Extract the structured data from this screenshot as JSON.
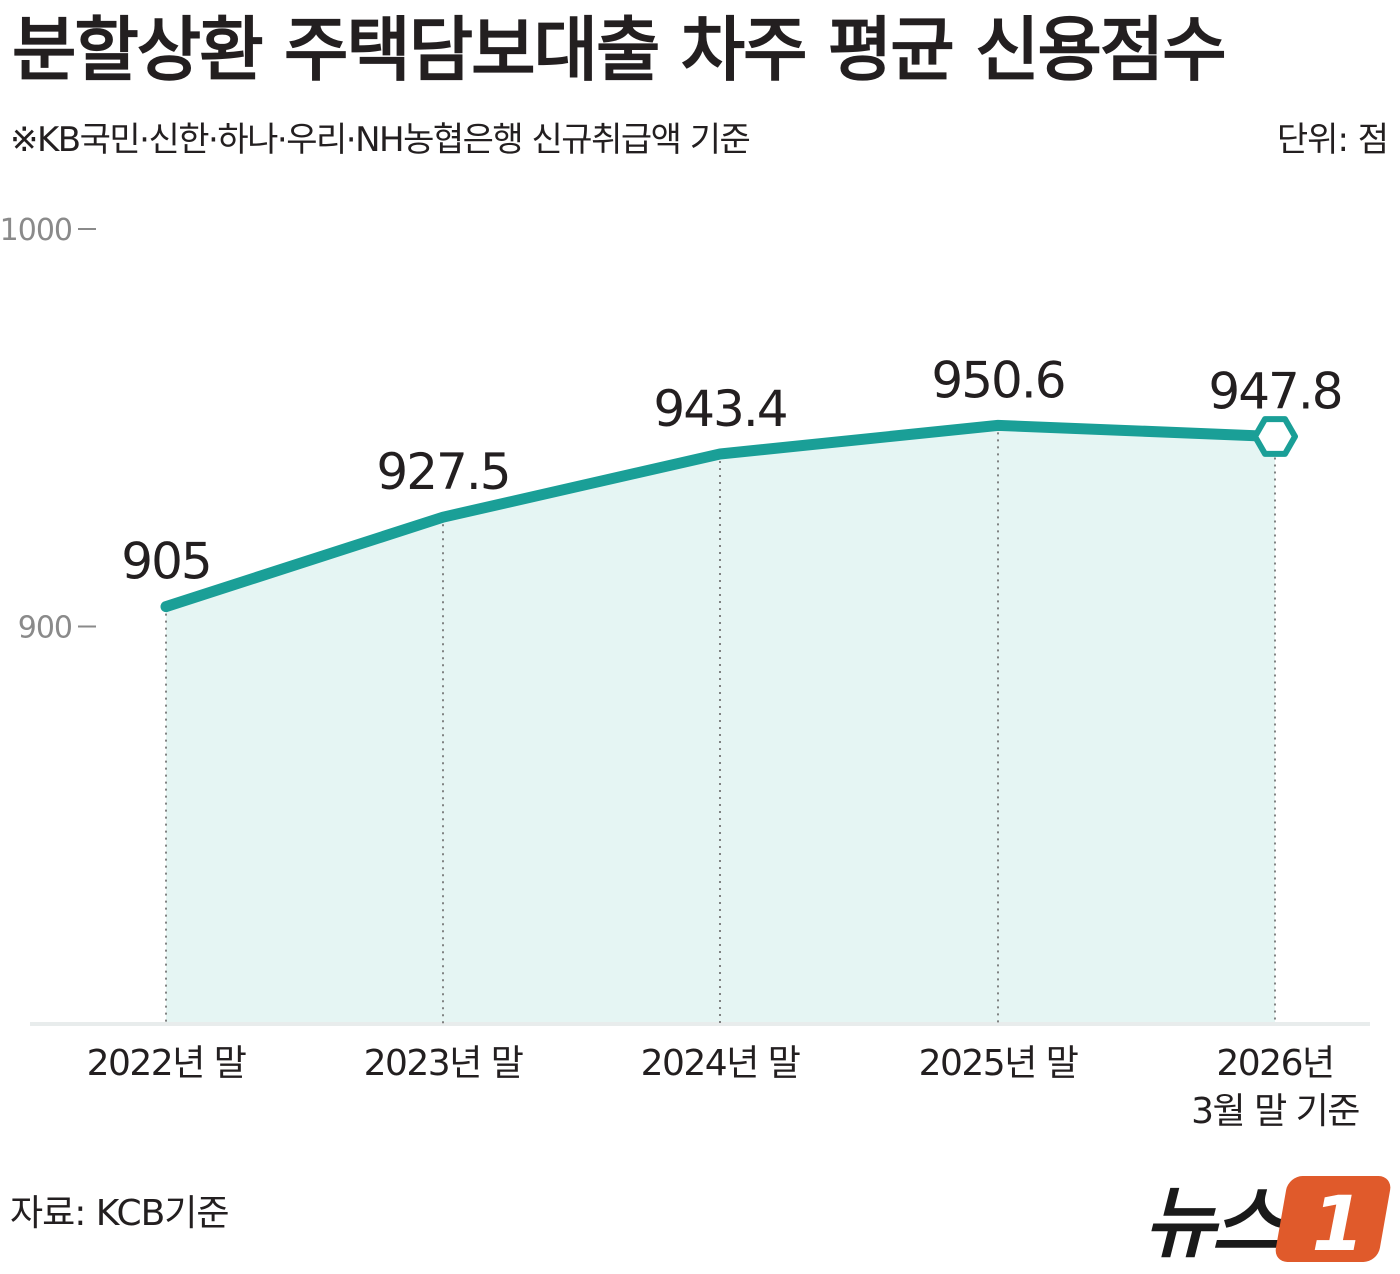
{
  "title": "분할상환 주택담보대출 차주 평균 신용점수",
  "subtitle": "※KB국민·신한·하나·우리·NH농협은행 신규취급액 기준",
  "unit_label": "단위: 점",
  "source": "자료: KCB기준",
  "logo": {
    "text": "뉴스",
    "mark": "1",
    "mark_color": "#e05a2b",
    "text_color": "#1a1a1a"
  },
  "colors": {
    "line": "#1a9f97",
    "fill": "#e5f5f3",
    "marker_fill": "#ffffff",
    "axis_text": "#8a8a8a",
    "guide": "#666666"
  },
  "chart_data": {
    "type": "line",
    "categories": [
      "2022년 말",
      "2023년 말",
      "2024년 말",
      "2025년 말",
      "2026년 3월 말 기준"
    ],
    "category_lines": [
      [
        "2022년 말"
      ],
      [
        "2023년 말"
      ],
      [
        "2024년 말"
      ],
      [
        "2025년 말"
      ],
      [
        "2026년",
        "3월 말 기준"
      ]
    ],
    "series": [
      {
        "values": [
          905,
          927.5,
          943.4,
          950.6,
          947.8
        ]
      }
    ],
    "value_labels": [
      "905",
      "927.5",
      "943.4",
      "950.6",
      "947.8"
    ],
    "ylim": [
      800,
      1000
    ],
    "yticks": [
      1000,
      900
    ],
    "ytick_labels": [
      "1000",
      "900"
    ],
    "highlight_last_point": true,
    "grid": false
  }
}
